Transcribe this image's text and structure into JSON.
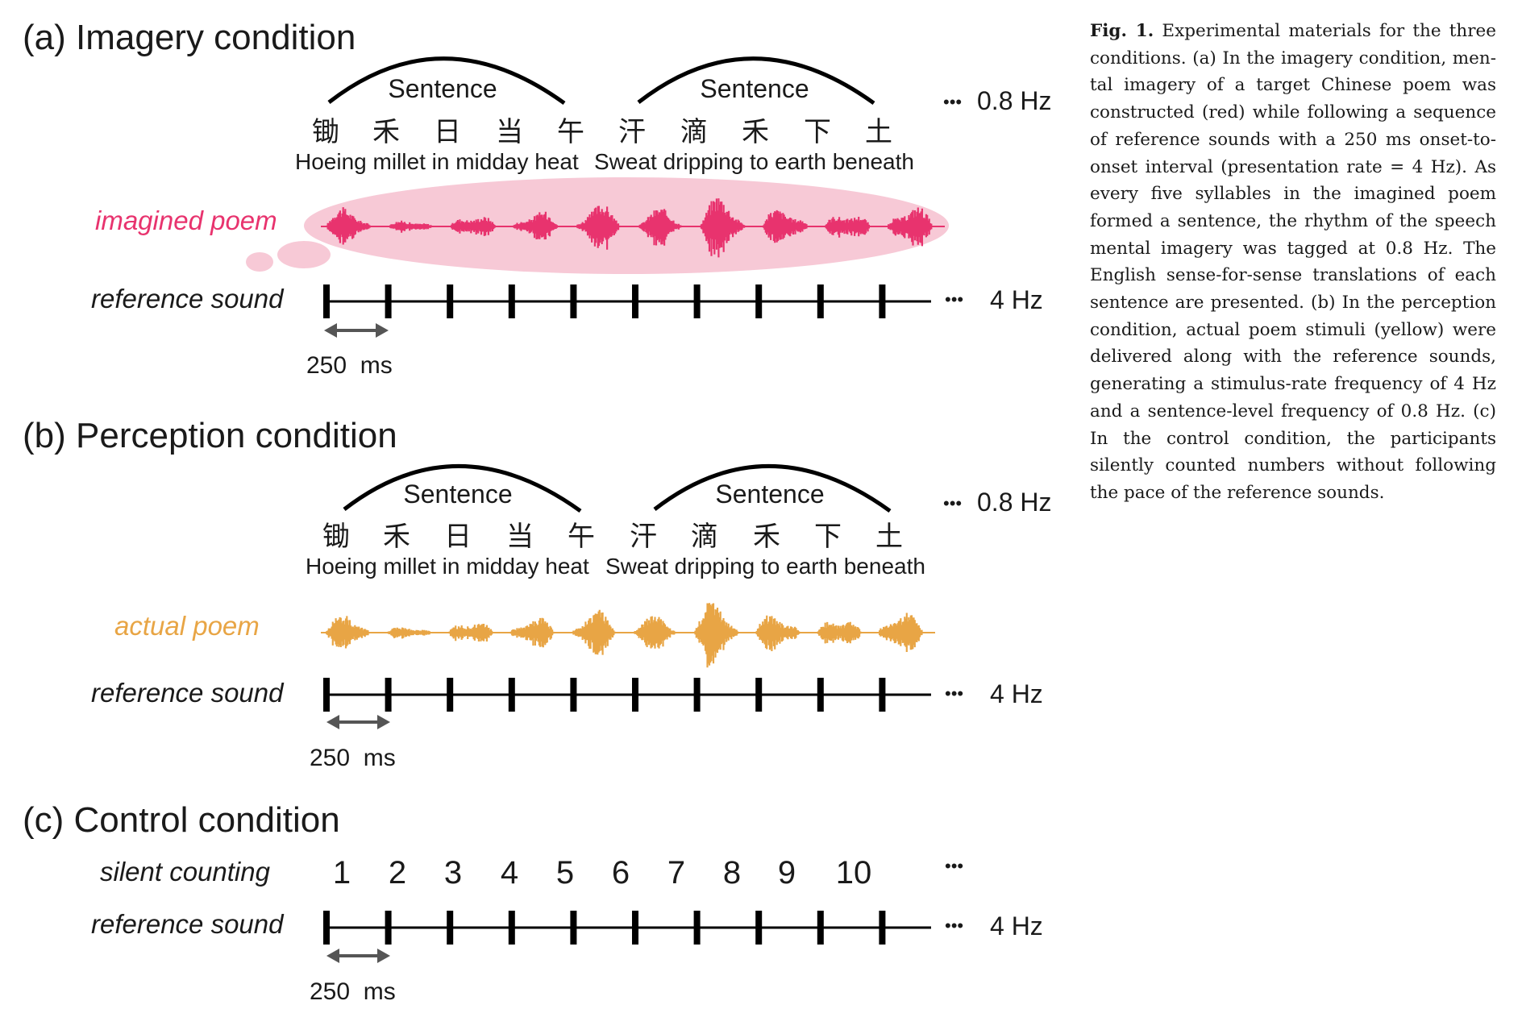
{
  "panels": {
    "a": {
      "title": "(a) Imagery condition",
      "sentence_labels": [
        "Sentence",
        "Sentence"
      ],
      "characters": [
        "锄",
        "禾",
        "日",
        "当",
        "午",
        "汗",
        "滴",
        "禾",
        "下",
        "土"
      ],
      "translation_1": "Hoeing millet in midday heat",
      "translation_2": "Sweat dripping to earth beneath",
      "sentence_rate": "0.8 Hz",
      "poem_label": "imagined poem",
      "poem_color": "#e8336e",
      "bubble_color": "#f7c9d6",
      "reference_label": "reference sound",
      "reference_rate": "4 Hz",
      "interval_label": "250  ms",
      "ellipsis": "•••"
    },
    "b": {
      "title": "(b) Perception condition",
      "sentence_labels": [
        "Sentence",
        "Sentence"
      ],
      "characters": [
        "锄",
        "禾",
        "日",
        "当",
        "午",
        "汗",
        "滴",
        "禾",
        "下",
        "土"
      ],
      "translation_1": "Hoeing millet in midday heat",
      "translation_2": "Sweat dripping to earth beneath",
      "sentence_rate": "0.8 Hz",
      "poem_label": "actual poem",
      "poem_color": "#e8a545",
      "reference_label": "reference sound",
      "reference_rate": "4 Hz",
      "interval_label": "250  ms",
      "ellipsis": "•••"
    },
    "c": {
      "title": "(c) Control condition",
      "counting_label": "silent counting",
      "numbers": [
        "1",
        "2",
        "3",
        "4",
        "5",
        "6",
        "7",
        "8",
        "9",
        "10"
      ],
      "reference_label": "reference sound",
      "reference_rate": "4 Hz",
      "interval_label": "250  ms",
      "ellipsis": "•••"
    }
  },
  "caption": {
    "label": "Fig. 1.",
    "text": "Experimental materials for the three conditions. (a) In the imagery condition, men­tal imagery of a target Chinese poem was constructed (red) while following a sequence of reference sounds with a 250 ms onset-to-onset interval (presentation rate = 4 Hz). As every five syllables in the imagined poem formed a sentence, the rhythm of the speech mental imagery was tagged at 0.8 Hz. The En­glish sense-for-sense translations of each sen­tence are presented. (b) In the perception con­dition, actual poem stimuli (yellow) were de­livered along with the reference sounds, gen­erating a stimulus-rate frequency of 4 Hz and a sentence-level frequency of 0.8 Hz. (c) In the control condition, the participants silently counted numbers without following the pace of the reference sounds."
  }
}
